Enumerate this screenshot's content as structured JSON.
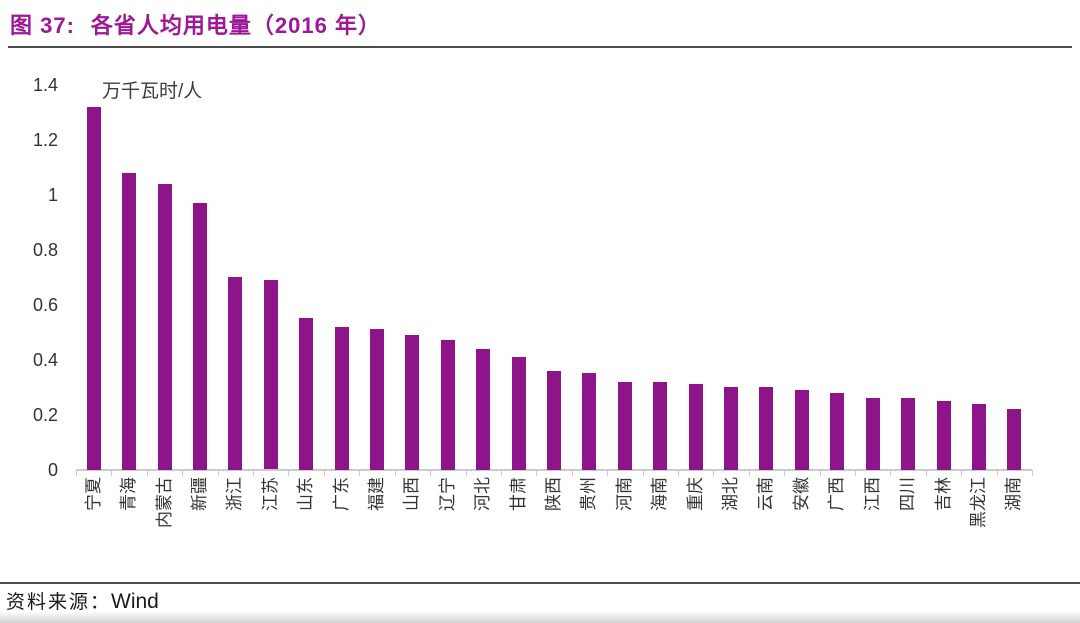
{
  "figure": {
    "title_prefix": "图 37:",
    "title_text": "各省人均用电量（2016 年）",
    "source_label": "资料来源：",
    "source_value": "Wind"
  },
  "chart_data": {
    "type": "bar",
    "title": "各省人均用电量（2016 年）",
    "xlabel": "",
    "ylabel": "万千瓦时/人",
    "unit_label": "万千瓦时/人",
    "categories": [
      "宁夏",
      "青海",
      "内蒙古",
      "新疆",
      "浙江",
      "江苏",
      "山东",
      "广东",
      "福建",
      "山西",
      "辽宁",
      "河北",
      "甘肃",
      "陕西",
      "贵州",
      "河南",
      "海南",
      "重庆",
      "湖北",
      "云南",
      "安徽",
      "广西",
      "江西",
      "四川",
      "吉林",
      "黑龙江",
      "湖南"
    ],
    "values": [
      1.32,
      1.08,
      1.04,
      0.97,
      0.7,
      0.69,
      0.55,
      0.52,
      0.51,
      0.49,
      0.47,
      0.44,
      0.41,
      0.36,
      0.35,
      0.32,
      0.32,
      0.31,
      0.3,
      0.3,
      0.29,
      0.28,
      0.26,
      0.26,
      0.25,
      0.24,
      0.22
    ],
    "ylim": [
      0,
      1.4
    ],
    "ytick_labels": [
      "1.4",
      "1.2",
      "1",
      "0.8",
      "0.6",
      "0.4",
      "0.2",
      "0"
    ],
    "ytick_values": [
      1.4,
      1.2,
      1.0,
      0.8,
      0.6,
      0.4,
      0.2,
      0
    ],
    "grid": false,
    "legend_position": "none",
    "bar_color": "#8E1489",
    "x_label_rotation_deg": -90
  },
  "colors": {
    "title_accent": "#9C1896",
    "bar": "#8E1489",
    "axis_text": "#333333",
    "axis_line": "#cbcbcb",
    "divider": "#4d4d4d"
  }
}
